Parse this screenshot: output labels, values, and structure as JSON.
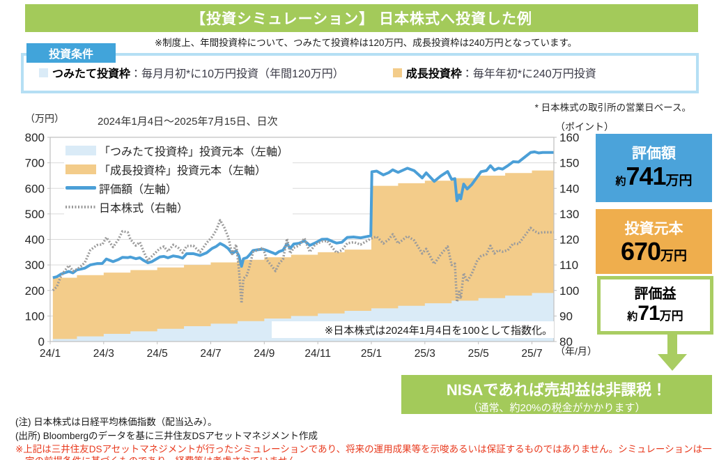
{
  "header": {
    "title": "【投資シミュレーション】 日本株式へ投資した例"
  },
  "regulation_note": "※制度上、年間投資枠について、つみたて投資枠は120万円、成長投資枠は240万円となっています。",
  "conditions": {
    "tag": "投資条件",
    "items": [
      {
        "name": "つみたて投資枠",
        "desc": "：毎月月初*に10万円投資（年間120万円）",
        "color": "#daebf7"
      },
      {
        "name": "成長投資枠",
        "desc": "：毎年年初*に240万円投資",
        "color": "#f3cc8a"
      }
    ],
    "footnote": "* 日本株式の取引所の営業日ベース。"
  },
  "chart_data": {
    "type": "area",
    "title": "2024年1月4日～2025年7月15日、日次",
    "left_axis": {
      "label": "（万円）",
      "min": 0,
      "max": 800,
      "step": 100
    },
    "right_axis": {
      "label": "（ポイント）",
      "min": 80,
      "max": 160,
      "step": 10
    },
    "x_axis": {
      "label": "（年/月）",
      "tick_months": [
        0,
        2,
        4,
        6,
        8,
        10,
        12,
        14,
        16,
        18
      ],
      "ticks": [
        "24/1",
        "24/3",
        "24/5",
        "24/7",
        "24/9",
        "24/11",
        "25/1",
        "25/3",
        "25/5",
        "25/7"
      ]
    },
    "grid": true,
    "legend_position": "top-left-inside",
    "annotation": "※日本株式は2024年1月4日を100として指数化。",
    "series": [
      {
        "name": "「つみたて投資枠」投資元本（左軸）",
        "type": "step-area",
        "axis": "left",
        "color": "#daebf7",
        "points": [
          [
            0.1,
            10
          ],
          [
            1,
            20
          ],
          [
            2,
            30
          ],
          [
            3,
            40
          ],
          [
            4,
            50
          ],
          [
            5,
            60
          ],
          [
            6,
            70
          ],
          [
            7,
            80
          ],
          [
            8,
            90
          ],
          [
            9,
            100
          ],
          [
            10,
            110
          ],
          [
            11,
            120
          ],
          [
            12,
            130
          ],
          [
            13,
            140
          ],
          [
            14,
            150
          ],
          [
            15,
            160
          ],
          [
            16,
            170
          ],
          [
            17,
            180
          ],
          [
            18,
            190
          ]
        ]
      },
      {
        "name": "「成長投資枠」投資元本（左軸）",
        "type": "step-area",
        "axis": "left",
        "color": "#f3cc8a",
        "points": [
          [
            0.1,
            250
          ],
          [
            1,
            260
          ],
          [
            2,
            270
          ],
          [
            3,
            280
          ],
          [
            4,
            290
          ],
          [
            5,
            300
          ],
          [
            6,
            310
          ],
          [
            7,
            320
          ],
          [
            8,
            330
          ],
          [
            9,
            340
          ],
          [
            10,
            350
          ],
          [
            11,
            360
          ],
          [
            12,
            610
          ],
          [
            13,
            620
          ],
          [
            14,
            630
          ],
          [
            15,
            640
          ],
          [
            16,
            650
          ],
          [
            17,
            660
          ],
          [
            18,
            670
          ]
        ]
      },
      {
        "name": "評価額（左軸）",
        "type": "line",
        "axis": "left",
        "color": "#4b9fd7",
        "width": 4,
        "points": [
          [
            0.1,
            250
          ],
          [
            0.25,
            253.8
          ],
          [
            0.4,
            263.8
          ],
          [
            0.55,
            269.5
          ],
          [
            0.7,
            274.5
          ],
          [
            0.85,
            269
          ],
          [
            1,
            280.7
          ],
          [
            1.15,
            283.8
          ],
          [
            1.3,
            287.7
          ],
          [
            1.5,
            300.2
          ],
          [
            1.75,
            305.3
          ],
          [
            1.95,
            305.9
          ],
          [
            2.1,
            323.3
          ],
          [
            2.35,
            313.1
          ],
          [
            2.55,
            321.1
          ],
          [
            2.7,
            329.7
          ],
          [
            2.9,
            328.6
          ],
          [
            3,
            331.1
          ],
          [
            3.2,
            324.5
          ],
          [
            3.35,
            328
          ],
          [
            3.5,
            317.3
          ],
          [
            3.65,
            308.5
          ],
          [
            3.8,
            312.9
          ],
          [
            4.1,
            331.4
          ],
          [
            4.25,
            333.4
          ],
          [
            4.4,
            328
          ],
          [
            4.6,
            335.4
          ],
          [
            4.8,
            331.7
          ],
          [
            4.95,
            326.6
          ],
          [
            5.1,
            344
          ],
          [
            5.35,
            344.3
          ],
          [
            5.6,
            337
          ],
          [
            5.85,
            347.8
          ],
          [
            6.05,
            364.6
          ],
          [
            6.2,
            372.1
          ],
          [
            6.35,
            384.2
          ],
          [
            6.5,
            376
          ],
          [
            6.65,
            364.6
          ],
          [
            6.8,
            344.4
          ],
          [
            6.95,
            355.5
          ],
          [
            7.05,
            336.4
          ],
          [
            7.15,
            294.5
          ],
          [
            7.22,
            324.3
          ],
          [
            7.35,
            328.6
          ],
          [
            7.45,
            339.5
          ],
          [
            7.58,
            356.5
          ],
          [
            7.75,
            359.3
          ],
          [
            7.95,
            361.8
          ],
          [
            8.1,
            356.5
          ],
          [
            8.3,
            348.2
          ],
          [
            8.42,
            342.8
          ],
          [
            8.55,
            352.1
          ],
          [
            8.7,
            357.5
          ],
          [
            8.85,
            383.3
          ],
          [
            8.97,
            364.8
          ],
          [
            9.1,
            381.8
          ],
          [
            9.3,
            384.8
          ],
          [
            9.5,
            394.3
          ],
          [
            9.7,
            376.6
          ],
          [
            9.9,
            386.1
          ],
          [
            10.15,
            400.3
          ],
          [
            10.35,
            401
          ],
          [
            10.55,
            391.9
          ],
          [
            10.7,
            385.5
          ],
          [
            10.9,
            388.9
          ],
          [
            11.1,
            408
          ],
          [
            11.35,
            409.4
          ],
          [
            11.6,
            406.3
          ],
          [
            11.85,
            411.4
          ],
          [
            11.98,
            414.5
          ],
          [
            12.02,
            665
          ],
          [
            12.2,
            667.6
          ],
          [
            12.45,
            652.7
          ],
          [
            12.65,
            661.6
          ],
          [
            12.8,
            672.6
          ],
          [
            13,
            662.7
          ],
          [
            13.35,
            678.9
          ],
          [
            13.6,
            669.4
          ],
          [
            13.9,
            640.9
          ],
          [
            14.05,
            660.9
          ],
          [
            14.35,
            627.4
          ],
          [
            14.6,
            649
          ],
          [
            14.85,
            666
          ],
          [
            15,
            635.1
          ],
          [
            15.12,
            638
          ],
          [
            15.2,
            551.4
          ],
          [
            15.28,
            574.5
          ],
          [
            15.34,
            558.9
          ],
          [
            15.45,
            616.7
          ],
          [
            15.58,
            597.6
          ],
          [
            15.75,
            614.9
          ],
          [
            15.95,
            643.8
          ],
          [
            16.1,
            665.4
          ],
          [
            16.3,
            669.6
          ],
          [
            16.45,
            688.9
          ],
          [
            16.6,
            671.3
          ],
          [
            16.75,
            678.9
          ],
          [
            16.9,
            675.4
          ],
          [
            17.1,
            688.9
          ],
          [
            17.3,
            704.4
          ],
          [
            17.5,
            703.2
          ],
          [
            17.7,
            719.8
          ],
          [
            17.95,
            740.6
          ],
          [
            18.1,
            743
          ],
          [
            18.25,
            738.7
          ],
          [
            18.4,
            740.5
          ]
        ]
      },
      {
        "name": "日本株式（右軸）",
        "type": "line",
        "axis": "right",
        "color": "#9b9b9b",
        "width": 3.5,
        "dashed": true,
        "points": [
          [
            0.1,
            100
          ],
          [
            0.25,
            101.5
          ],
          [
            0.4,
            105.5
          ],
          [
            0.55,
            107.8
          ],
          [
            0.7,
            109.8
          ],
          [
            0.85,
            107.6
          ],
          [
            1,
            108.3
          ],
          [
            1.15,
            109.5
          ],
          [
            1.3,
            111
          ],
          [
            1.5,
            115.8
          ],
          [
            1.75,
            117.8
          ],
          [
            1.95,
            118
          ],
          [
            2.1,
            120.8
          ],
          [
            2.35,
            117
          ],
          [
            2.55,
            120
          ],
          [
            2.7,
            123.2
          ],
          [
            2.9,
            122.8
          ],
          [
            3,
            120
          ],
          [
            3.2,
            117.6
          ],
          [
            3.35,
            118.9
          ],
          [
            3.5,
            115
          ],
          [
            3.65,
            111.8
          ],
          [
            3.8,
            113.4
          ],
          [
            4.1,
            116.5
          ],
          [
            4.25,
            117.2
          ],
          [
            4.4,
            115.3
          ],
          [
            4.6,
            117.9
          ],
          [
            4.8,
            116.6
          ],
          [
            4.95,
            114.8
          ],
          [
            5.1,
            117.4
          ],
          [
            5.35,
            117.5
          ],
          [
            5.6,
            115
          ],
          [
            5.85,
            118.7
          ],
          [
            6.05,
            121
          ],
          [
            6.2,
            123.5
          ],
          [
            6.35,
            127.5
          ],
          [
            6.5,
            124.8
          ],
          [
            6.65,
            121
          ],
          [
            6.8,
            114.3
          ],
          [
            6.95,
            118
          ],
          [
            7.05,
            108.5
          ],
          [
            7.15,
            95
          ],
          [
            7.22,
            104.6
          ],
          [
            7.35,
            106
          ],
          [
            7.45,
            109.5
          ],
          [
            7.58,
            115
          ],
          [
            7.75,
            115.9
          ],
          [
            7.95,
            116.7
          ],
          [
            8.1,
            111.9
          ],
          [
            8.3,
            109.3
          ],
          [
            8.42,
            107.6
          ],
          [
            8.55,
            110.5
          ],
          [
            8.7,
            112.2
          ],
          [
            8.85,
            120.3
          ],
          [
            8.97,
            114.5
          ],
          [
            9.1,
            116.7
          ],
          [
            9.3,
            117.6
          ],
          [
            9.5,
            120.5
          ],
          [
            9.7,
            115.1
          ],
          [
            9.9,
            118
          ],
          [
            10.15,
            119.2
          ],
          [
            10.35,
            119.4
          ],
          [
            10.55,
            116.7
          ],
          [
            10.7,
            114.8
          ],
          [
            10.9,
            115.8
          ],
          [
            11.1,
            118.5
          ],
          [
            11.35,
            118.9
          ],
          [
            11.6,
            118
          ],
          [
            11.85,
            119.5
          ],
          [
            12,
            120.4
          ],
          [
            12.2,
            121.1
          ],
          [
            12.45,
            118.4
          ],
          [
            12.65,
            120
          ],
          [
            12.8,
            122
          ],
          [
            13,
            118.4
          ],
          [
            13.35,
            121.3
          ],
          [
            13.6,
            119.6
          ],
          [
            13.9,
            114.5
          ],
          [
            14.05,
            116.3
          ],
          [
            14.35,
            110.4
          ],
          [
            14.6,
            114.2
          ],
          [
            14.85,
            117.2
          ],
          [
            15,
            110
          ],
          [
            15.12,
            110.5
          ],
          [
            15.2,
            95.5
          ],
          [
            15.28,
            99.5
          ],
          [
            15.34,
            96.8
          ],
          [
            15.45,
            106.8
          ],
          [
            15.58,
            103.5
          ],
          [
            15.75,
            106.5
          ],
          [
            15.95,
            111.5
          ],
          [
            16.1,
            113.5
          ],
          [
            16.3,
            114.2
          ],
          [
            16.45,
            117.5
          ],
          [
            16.6,
            114.5
          ],
          [
            16.75,
            115.8
          ],
          [
            16.9,
            115.2
          ],
          [
            17.1,
            115.8
          ],
          [
            17.3,
            118.4
          ],
          [
            17.5,
            118.2
          ],
          [
            17.7,
            121
          ],
          [
            17.95,
            124.5
          ],
          [
            18.1,
            123.2
          ],
          [
            18.25,
            122.5
          ],
          [
            18.4,
            122.8
          ]
        ]
      }
    ]
  },
  "summary_boxes": [
    {
      "label": "評価額",
      "prefix": "約",
      "value": "741",
      "unit": "万円",
      "bg": "#4ba3da"
    },
    {
      "label": "投資元本",
      "prefix": "",
      "value": "670",
      "unit": "万円",
      "bg": "#efae4d"
    },
    {
      "label": "評価益",
      "prefix": "約",
      "value": "71",
      "unit": "万円",
      "bg": "#ffffff",
      "border": "#a9cd62"
    }
  ],
  "nisa_callout": {
    "line1": "NISAであれば売却益は非課税！",
    "line2": "（通常、約20%の税金がかかります）",
    "bg": "#a3ca5a"
  },
  "footer": {
    "note1": "(注) 日本株式は日経平均株価指数（配当込み）。",
    "note2": "(出所) Bloombergのデータを基に三井住友DSアセットマネジメント作成",
    "disclaimer": "※上記は三井住友DSアセットマネジメントが行ったシミュレーションであり、将来の運用成果等を示唆あるいは保証するものではありません。シミュレーションは一定の前提条件に基づくものであり、経費等は考慮されていません。"
  },
  "colors": {
    "header_green": "#a3ca5a",
    "accent_green": "#a9cd62",
    "tag_blue": "#41a4da",
    "condition_border_blue": "#b5dff4",
    "tsumitate_area": "#daebf7",
    "growth_area": "#f3cc8a",
    "valuation_line": "#4b9fd7",
    "nikkei_line": "#9b9b9b",
    "disclaimer_red": "#e8391d"
  }
}
